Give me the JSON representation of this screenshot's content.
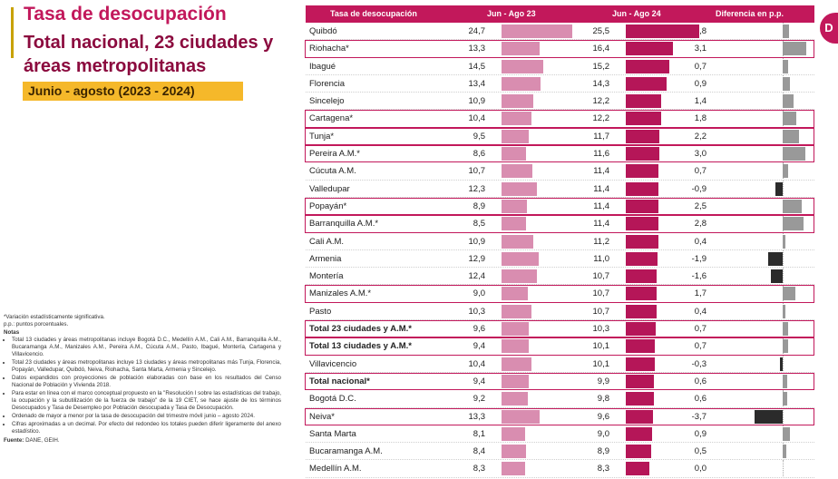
{
  "header": {
    "title": "Tasa de desocupación",
    "subtitle": "Total nacional, 23 ciudades y áreas metropolitanas",
    "period": "Junio - agosto (2023 - 2024)"
  },
  "colors": {
    "brand": "#c2185b",
    "bar_2023": "#d98db0",
    "bar_2024": "#b51658",
    "diff_positive": "#999999",
    "diff_negative": "#2b2b2b",
    "period_badge": "#f5b82a"
  },
  "notes": {
    "significance": "*Variación estadísticamente significativa.",
    "units": "p.p.: puntos porcentuales.",
    "notes_label": "Notas",
    "items": [
      "Total 13 ciudades y áreas metropolitanas incluye Bogotá D.C., Medellín A.M., Cali A.M., Barranquilla A.M., Bucaramanga A.M., Manizales A.M., Pereira A.M., Cúcuta A.M., Pasto, Ibagué, Montería, Cartagena y Villavicencio.",
      "Total 23 ciudades y áreas metropolitanas incluye 13 ciudades y áreas metropolitanas más Tunja, Florencia, Popayán, Valledupar, Quibdó, Neiva, Riohacha, Santa Marta, Armenia y Sincelejo.",
      "Datos expandidos con proyecciones de población elaboradas con base en los resultados del Censo Nacional de Población y Vivienda 2018.",
      "Para estar en línea con el marco conceptual propuesto en la \"Resolución I sobre las estadísticas del trabajo, la ocupación y la subutilización de la fuerza de trabajo\" de la 19 CIET, se hace ajuste de los términos Desocupados y Tasa de Desempleo por Población desocupada y Tasa de Desocupación.",
      "Ordenado de mayor a menor por la tasa de desocupación del trimestre móvil junio – agosto 2024.",
      "Cifras aproximadas a un decimal. Por efecto del redondeo los totales pueden diferir ligeramente del anexo estadístico."
    ],
    "source_label": "Fuente:",
    "source_text": "DANE, GEIH."
  },
  "side_tab": {
    "icon": "dane-logo-icon",
    "glyph": "D"
  },
  "chart_data": {
    "type": "table",
    "columns": [
      "Tasa de desocupación",
      "Jun - Ago 23",
      "Jun - Ago 24",
      "Diferencia en p.p."
    ],
    "bar_scale_max": 25.5,
    "diff_scale_max": 3.7,
    "rows": [
      {
        "name": "Quibdó",
        "v23": "24,7",
        "v24": "25,5",
        "diff": "0,8",
        "n23": 24.7,
        "n24": 25.5,
        "nd": 0.8,
        "hl": false,
        "bold": false
      },
      {
        "name": "Riohacha*",
        "v23": "13,3",
        "v24": "16,4",
        "diff": "3,1",
        "n23": 13.3,
        "n24": 16.4,
        "nd": 3.1,
        "hl": true,
        "bold": false
      },
      {
        "name": "Ibagué",
        "v23": "14,5",
        "v24": "15,2",
        "diff": "0,7",
        "n23": 14.5,
        "n24": 15.2,
        "nd": 0.7,
        "hl": false,
        "bold": false
      },
      {
        "name": "Florencia",
        "v23": "13,4",
        "v24": "14,3",
        "diff": "0,9",
        "n23": 13.4,
        "n24": 14.3,
        "nd": 0.9,
        "hl": false,
        "bold": false
      },
      {
        "name": "Sincelejo",
        "v23": "10,9",
        "v24": "12,2",
        "diff": "1,4",
        "n23": 10.9,
        "n24": 12.2,
        "nd": 1.4,
        "hl": false,
        "bold": false
      },
      {
        "name": "Cartagena*",
        "v23": "10,4",
        "v24": "12,2",
        "diff": "1,8",
        "n23": 10.4,
        "n24": 12.2,
        "nd": 1.8,
        "hl": true,
        "bold": false
      },
      {
        "name": "Tunja*",
        "v23": "9,5",
        "v24": "11,7",
        "diff": "2,2",
        "n23": 9.5,
        "n24": 11.7,
        "nd": 2.2,
        "hl": true,
        "bold": false
      },
      {
        "name": "Pereira A.M.*",
        "v23": "8,6",
        "v24": "11,6",
        "diff": "3,0",
        "n23": 8.6,
        "n24": 11.6,
        "nd": 3.0,
        "hl": true,
        "bold": false
      },
      {
        "name": "Cúcuta A.M.",
        "v23": "10,7",
        "v24": "11,4",
        "diff": "0,7",
        "n23": 10.7,
        "n24": 11.4,
        "nd": 0.7,
        "hl": false,
        "bold": false
      },
      {
        "name": "Valledupar",
        "v23": "12,3",
        "v24": "11,4",
        "diff": "-0,9",
        "n23": 12.3,
        "n24": 11.4,
        "nd": -0.9,
        "hl": false,
        "bold": false
      },
      {
        "name": "Popayán*",
        "v23": "8,9",
        "v24": "11,4",
        "diff": "2,5",
        "n23": 8.9,
        "n24": 11.4,
        "nd": 2.5,
        "hl": true,
        "bold": false
      },
      {
        "name": "Barranquilla A.M.*",
        "v23": "8,5",
        "v24": "11,4",
        "diff": "2,8",
        "n23": 8.5,
        "n24": 11.4,
        "nd": 2.8,
        "hl": true,
        "bold": false
      },
      {
        "name": "Cali A.M.",
        "v23": "10,9",
        "v24": "11,2",
        "diff": "0,4",
        "n23": 10.9,
        "n24": 11.2,
        "nd": 0.4,
        "hl": false,
        "bold": false
      },
      {
        "name": "Armenia",
        "v23": "12,9",
        "v24": "11,0",
        "diff": "-1,9",
        "n23": 12.9,
        "n24": 11.0,
        "nd": -1.9,
        "hl": false,
        "bold": false
      },
      {
        "name": "Montería",
        "v23": "12,4",
        "v24": "10,7",
        "diff": "-1,6",
        "n23": 12.4,
        "n24": 10.7,
        "nd": -1.6,
        "hl": false,
        "bold": false
      },
      {
        "name": "Manizales A.M.*",
        "v23": "9,0",
        "v24": "10,7",
        "diff": "1,7",
        "n23": 9.0,
        "n24": 10.7,
        "nd": 1.7,
        "hl": true,
        "bold": false
      },
      {
        "name": "Pasto",
        "v23": "10,3",
        "v24": "10,7",
        "diff": "0,4",
        "n23": 10.3,
        "n24": 10.7,
        "nd": 0.4,
        "hl": false,
        "bold": false
      },
      {
        "name": "Total 23 ciudades y A.M.*",
        "v23": "9,6",
        "v24": "10,3",
        "diff": "0,7",
        "n23": 9.6,
        "n24": 10.3,
        "nd": 0.7,
        "hl": true,
        "bold": true
      },
      {
        "name": "Total 13 ciudades y A.M.*",
        "v23": "9,4",
        "v24": "10,1",
        "diff": "0,7",
        "n23": 9.4,
        "n24": 10.1,
        "nd": 0.7,
        "hl": true,
        "bold": true
      },
      {
        "name": "Villavicencio",
        "v23": "10,4",
        "v24": "10,1",
        "diff": "-0,3",
        "n23": 10.4,
        "n24": 10.1,
        "nd": -0.3,
        "hl": false,
        "bold": false
      },
      {
        "name": "Total nacional*",
        "v23": "9,4",
        "v24": "9,9",
        "diff": "0,6",
        "n23": 9.4,
        "n24": 9.9,
        "nd": 0.6,
        "hl": true,
        "bold": true
      },
      {
        "name": "Bogotá D.C.",
        "v23": "9,2",
        "v24": "9,8",
        "diff": "0,6",
        "n23": 9.2,
        "n24": 9.8,
        "nd": 0.6,
        "hl": false,
        "bold": false
      },
      {
        "name": "Neiva*",
        "v23": "13,3",
        "v24": "9,6",
        "diff": "-3,7",
        "n23": 13.3,
        "n24": 9.6,
        "nd": -3.7,
        "hl": true,
        "bold": false
      },
      {
        "name": "Santa Marta",
        "v23": "8,1",
        "v24": "9,0",
        "diff": "0,9",
        "n23": 8.1,
        "n24": 9.0,
        "nd": 0.9,
        "hl": false,
        "bold": false
      },
      {
        "name": "Bucaramanga A.M.",
        "v23": "8,4",
        "v24": "8,9",
        "diff": "0,5",
        "n23": 8.4,
        "n24": 8.9,
        "nd": 0.5,
        "hl": false,
        "bold": false
      },
      {
        "name": "Medellín A.M.",
        "v23": "8,3",
        "v24": "8,3",
        "diff": "0,0",
        "n23": 8.3,
        "n24": 8.3,
        "nd": 0.0,
        "hl": false,
        "bold": false
      }
    ]
  }
}
